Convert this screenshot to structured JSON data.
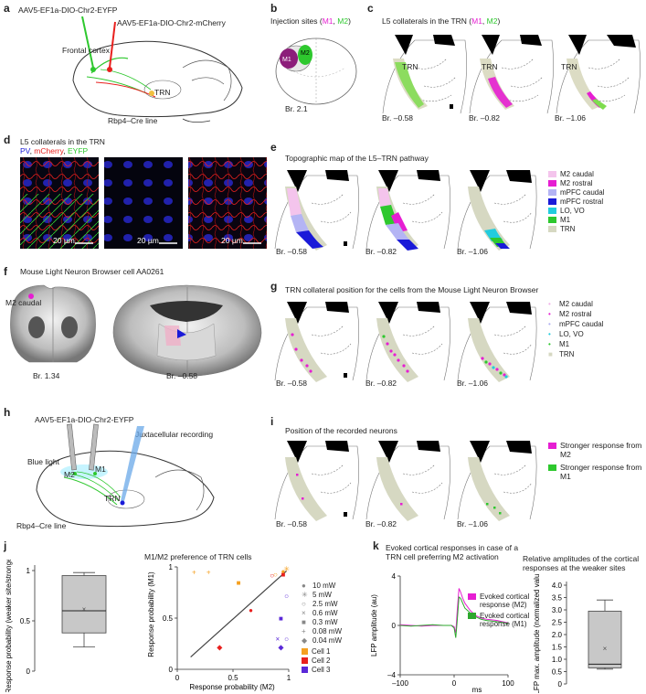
{
  "panels": {
    "a": {
      "label": "a",
      "virus_green": "AAV5-EF1a-DIO-Chr2-EYFP",
      "virus_red": "AAV5-EF1a-DIO-Chr2-mCherry",
      "region": "Frontal cortex",
      "trn": "TRN",
      "mouse": "Rbp4–Cre line"
    },
    "b": {
      "label": "b",
      "title_prefix": "Injection sites (",
      "m1": "M1",
      "sep": ", ",
      "m2": "M2",
      "title_suffix": ")",
      "bregma": "Br. 2.1"
    },
    "c": {
      "label": "c",
      "title_prefix": "L5 collaterals in the TRN (",
      "m1": "M1",
      "sep": ", ",
      "m2": "M2",
      "title_suffix": ")",
      "trn": "TRN",
      "bregmas": [
        "Br. –0.58",
        "Br. –0.82",
        "Br. –1.06"
      ]
    },
    "d": {
      "label": "d",
      "title": "L5 collaterals in the TRN",
      "pv": "PV",
      "mcherry": "mCherry",
      "eyfp": "EYFP",
      "sep": ", ",
      "scale": "20 µm"
    },
    "e": {
      "label": "e",
      "title": "Topographic map of the L5–TRN pathway",
      "bregmas": [
        "Br. –0.58",
        "Br. –0.82",
        "Br. –1.06"
      ],
      "legend": [
        {
          "name": "M2 caudal",
          "color": "#f4c4ec"
        },
        {
          "name": "M2 rostral",
          "color": "#e61ed2"
        },
        {
          "name": "mPFC caudal",
          "color": "#b4b4f4"
        },
        {
          "name": "mPFC rostral",
          "color": "#1a1ad8"
        },
        {
          "name": "LO, VO",
          "color": "#22ccdd"
        },
        {
          "name": "M1",
          "color": "#2ec82e"
        },
        {
          "name": "TRN",
          "color": "#d6d8c2"
        }
      ]
    },
    "f": {
      "label": "f",
      "title": "Mouse Light Neuron Browser cell AA0261",
      "region": "M2 caudal",
      "bregmas": [
        "Br. 1.34",
        "Br. –0.58"
      ]
    },
    "g": {
      "label": "g",
      "title": "TRN collateral position for the cells from the Mouse Light Neuron Browser",
      "bregmas": [
        "Br. –0.58",
        "Br. –0.82",
        "Br. –1.06"
      ],
      "legend": [
        {
          "name": "M2 caudal",
          "color": "#f0b0e8",
          "symbol": "•"
        },
        {
          "name": "M2 rostral",
          "color": "#e61ed2",
          "symbol": "•"
        },
        {
          "name": "mPFC caudal",
          "color": "#b0b0f0",
          "symbol": "•"
        },
        {
          "name": "LO, VO",
          "color": "#22ccdd",
          "symbol": "•"
        },
        {
          "name": "M1",
          "color": "#2ec82e",
          "symbol": "•"
        },
        {
          "name": "TRN",
          "color": "#d6d8c2",
          "symbol": "■"
        }
      ]
    },
    "h": {
      "label": "h",
      "virus": "AAV5-EF1a-DIO-Chr2-EYFP",
      "recording": "Juxtacellular recording",
      "light": "Blue light",
      "m2": "M2",
      "m1": "M1",
      "trn": "TRN",
      "mouse": "Rbp4–Cre line"
    },
    "i": {
      "label": "i",
      "title": "Position of the recorded neurons",
      "bregmas": [
        "Br. –0.58",
        "Br. –0.82",
        "Br. –1.06"
      ],
      "legend": [
        {
          "name": "Stronger response from M2",
          "color": "#e61ed2"
        },
        {
          "name": "Stronger response from M1",
          "color": "#2ec82e"
        }
      ]
    },
    "j": {
      "label": "j",
      "title": "M1/M2 preference of TRN cells",
      "legend_power": [
        {
          "name": "10 mW",
          "symbol": "●"
        },
        {
          "name": "5 mW",
          "symbol": "✳"
        },
        {
          "name": "2.5 mW",
          "symbol": "○"
        },
        {
          "name": "0.6 mW",
          "symbol": "×"
        },
        {
          "name": "0.3 mW",
          "symbol": "■"
        },
        {
          "name": "0.08 mW",
          "symbol": "+"
        },
        {
          "name": "0.04 mW",
          "symbol": "◆"
        }
      ],
      "legend_cells": [
        {
          "name": "Cell 1",
          "color": "#f5a020"
        },
        {
          "name": "Cell 2",
          "color": "#e8201e"
        },
        {
          "name": "Cell 3",
          "color": "#5a28d8"
        }
      ]
    },
    "k": {
      "label": "k",
      "title": "Evoked cortical responses in case of a TRN cell preferring M2 activation",
      "legend": [
        {
          "name": "Evoked cortical response (M2)",
          "color": "#e61ed2"
        },
        {
          "name": "Evoked cortical response (M1)",
          "color": "#2ea82e"
        }
      ],
      "right_title": "Relative amplitudes of the cortical responses at the weaker sites"
    }
  },
  "chart_data": [
    {
      "type": "box",
      "panel": "j-left",
      "ylabel": "Response probability (weaker site/stronger site)",
      "yticks": [
        "0",
        "0.5",
        "1"
      ],
      "ylim": [
        0,
        1
      ],
      "box": {
        "min": 0.24,
        "q1": 0.38,
        "median": 0.6,
        "q3": 0.95,
        "max": 0.98,
        "mean": 0.62
      }
    },
    {
      "type": "scatter",
      "panel": "j-right",
      "xlabel": "Response probability (M2)",
      "ylabel": "Response probability (M1)",
      "xlim": [
        0,
        1
      ],
      "ylim": [
        0,
        1
      ],
      "xticks": [
        "0",
        "0.5",
        "1"
      ],
      "yticks": [
        "0",
        "0.5",
        "1"
      ],
      "points": [
        {
          "cell": "Cell 1",
          "power": "0.08 mW",
          "x": 0.15,
          "y": 0.95
        },
        {
          "cell": "Cell 1",
          "power": "0.08 mW",
          "x": 0.28,
          "y": 0.95
        },
        {
          "cell": "Cell 1",
          "power": "0.3 mW",
          "x": 0.55,
          "y": 0.85
        },
        {
          "cell": "Cell 1",
          "power": "10 mW",
          "x": 0.95,
          "y": 0.96
        },
        {
          "cell": "Cell 1",
          "power": "2.5 mW",
          "x": 0.88,
          "y": 0.93
        },
        {
          "cell": "Cell 1",
          "power": "5 mW",
          "x": 0.98,
          "y": 0.98
        },
        {
          "cell": "Cell 2",
          "power": "2.5 mW",
          "x": 0.85,
          "y": 0.92
        },
        {
          "cell": "Cell 2",
          "power": "10 mW",
          "x": 0.66,
          "y": 0.58
        },
        {
          "cell": "Cell 2",
          "power": "0.04 mW",
          "x": 0.38,
          "y": 0.22
        },
        {
          "cell": "Cell 2",
          "power": "0.3 mW",
          "x": 0.95,
          "y": 0.93
        },
        {
          "cell": "Cell 3",
          "power": "2.5 mW",
          "x": 0.98,
          "y": 0.72
        },
        {
          "cell": "Cell 3",
          "power": "0.3 mW",
          "x": 0.93,
          "y": 0.5
        },
        {
          "cell": "Cell 3",
          "power": "0.6 mW",
          "x": 0.9,
          "y": 0.3
        },
        {
          "cell": "Cell 3",
          "power": "2.5 mW",
          "x": 0.98,
          "y": 0.3
        },
        {
          "cell": "Cell 3",
          "power": "0.04 mW",
          "x": 0.93,
          "y": 0.22
        }
      ],
      "regression": {
        "x": [
          0.12,
          0.98
        ],
        "y": [
          0.12,
          0.96
        ]
      }
    },
    {
      "type": "line",
      "panel": "k-left",
      "xlabel": "ms",
      "ylabel": "LFP amplitude (au)",
      "xlim": [
        -100,
        100
      ],
      "ylim": [
        -4,
        4
      ],
      "xticks": [
        "–100",
        "0",
        "100"
      ],
      "yticks": [
        "–4",
        "0",
        "4"
      ],
      "series": [
        {
          "name": "Evoked cortical response (M2)",
          "x": [
            -100,
            -80,
            -60,
            -40,
            -20,
            -5,
            0,
            3,
            6,
            9,
            12,
            16,
            20,
            25,
            30,
            35,
            40,
            50,
            60,
            70,
            80,
            90,
            100
          ],
          "y": [
            0.05,
            0.0,
            -0.05,
            0.0,
            0.0,
            0.0,
            -0.1,
            -0.6,
            1.3,
            3.0,
            2.7,
            2.2,
            1.8,
            1.5,
            1.2,
            1.0,
            0.8,
            0.6,
            0.5,
            0.45,
            0.4,
            0.3,
            0.2
          ]
        },
        {
          "name": "Evoked cortical response (M1)",
          "x": [
            -100,
            -80,
            -60,
            -40,
            -20,
            -5,
            0,
            3,
            6,
            9,
            12,
            16,
            20,
            25,
            30,
            35,
            40,
            50,
            60,
            70,
            80,
            90,
            100
          ],
          "y": [
            0.0,
            -0.05,
            0.0,
            0.05,
            0.0,
            0.0,
            -0.2,
            -1.0,
            0.5,
            2.3,
            2.2,
            1.8,
            1.4,
            1.2,
            1.0,
            0.8,
            0.7,
            0.5,
            0.4,
            0.35,
            0.3,
            0.25,
            0.15
          ]
        }
      ]
    },
    {
      "type": "box",
      "panel": "k-right",
      "ylabel": "LFP max. amplitude (normalized value)",
      "yticks": [
        "0",
        "0.5",
        "1.0",
        "1.5",
        "2.0",
        "2.5",
        "3.0",
        "3.5",
        "4.0"
      ],
      "ylim": [
        0,
        4
      ],
      "box": {
        "min": 0.6,
        "q1": 0.65,
        "median": 0.8,
        "q3": 2.95,
        "max": 3.4,
        "mean": 1.45
      }
    }
  ]
}
